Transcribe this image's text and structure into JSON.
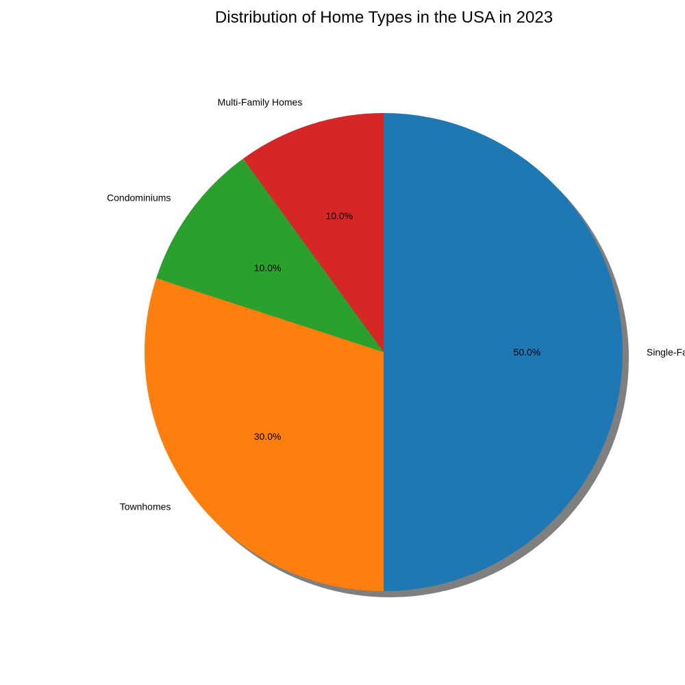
{
  "chart_data": {
    "type": "pie",
    "title": "Distribution of Home Types in the USA in 2023",
    "slices": [
      {
        "label": "Single-Family Homes",
        "value": 50.0,
        "pct_label": "50.0%",
        "color": "#1f77b4"
      },
      {
        "label": "Townhomes",
        "value": 30.0,
        "pct_label": "30.0%",
        "color": "#ff7f0e"
      },
      {
        "label": "Condominiums",
        "value": 10.0,
        "pct_label": "10.0%",
        "color": "#2ca02c"
      },
      {
        "label": "Multi-Family Homes",
        "value": 10.0,
        "pct_label": "10.0%",
        "color": "#d62728"
      }
    ],
    "start_angle_deg": 90,
    "direction": "clockwise",
    "shadow": true,
    "legend": "none"
  }
}
